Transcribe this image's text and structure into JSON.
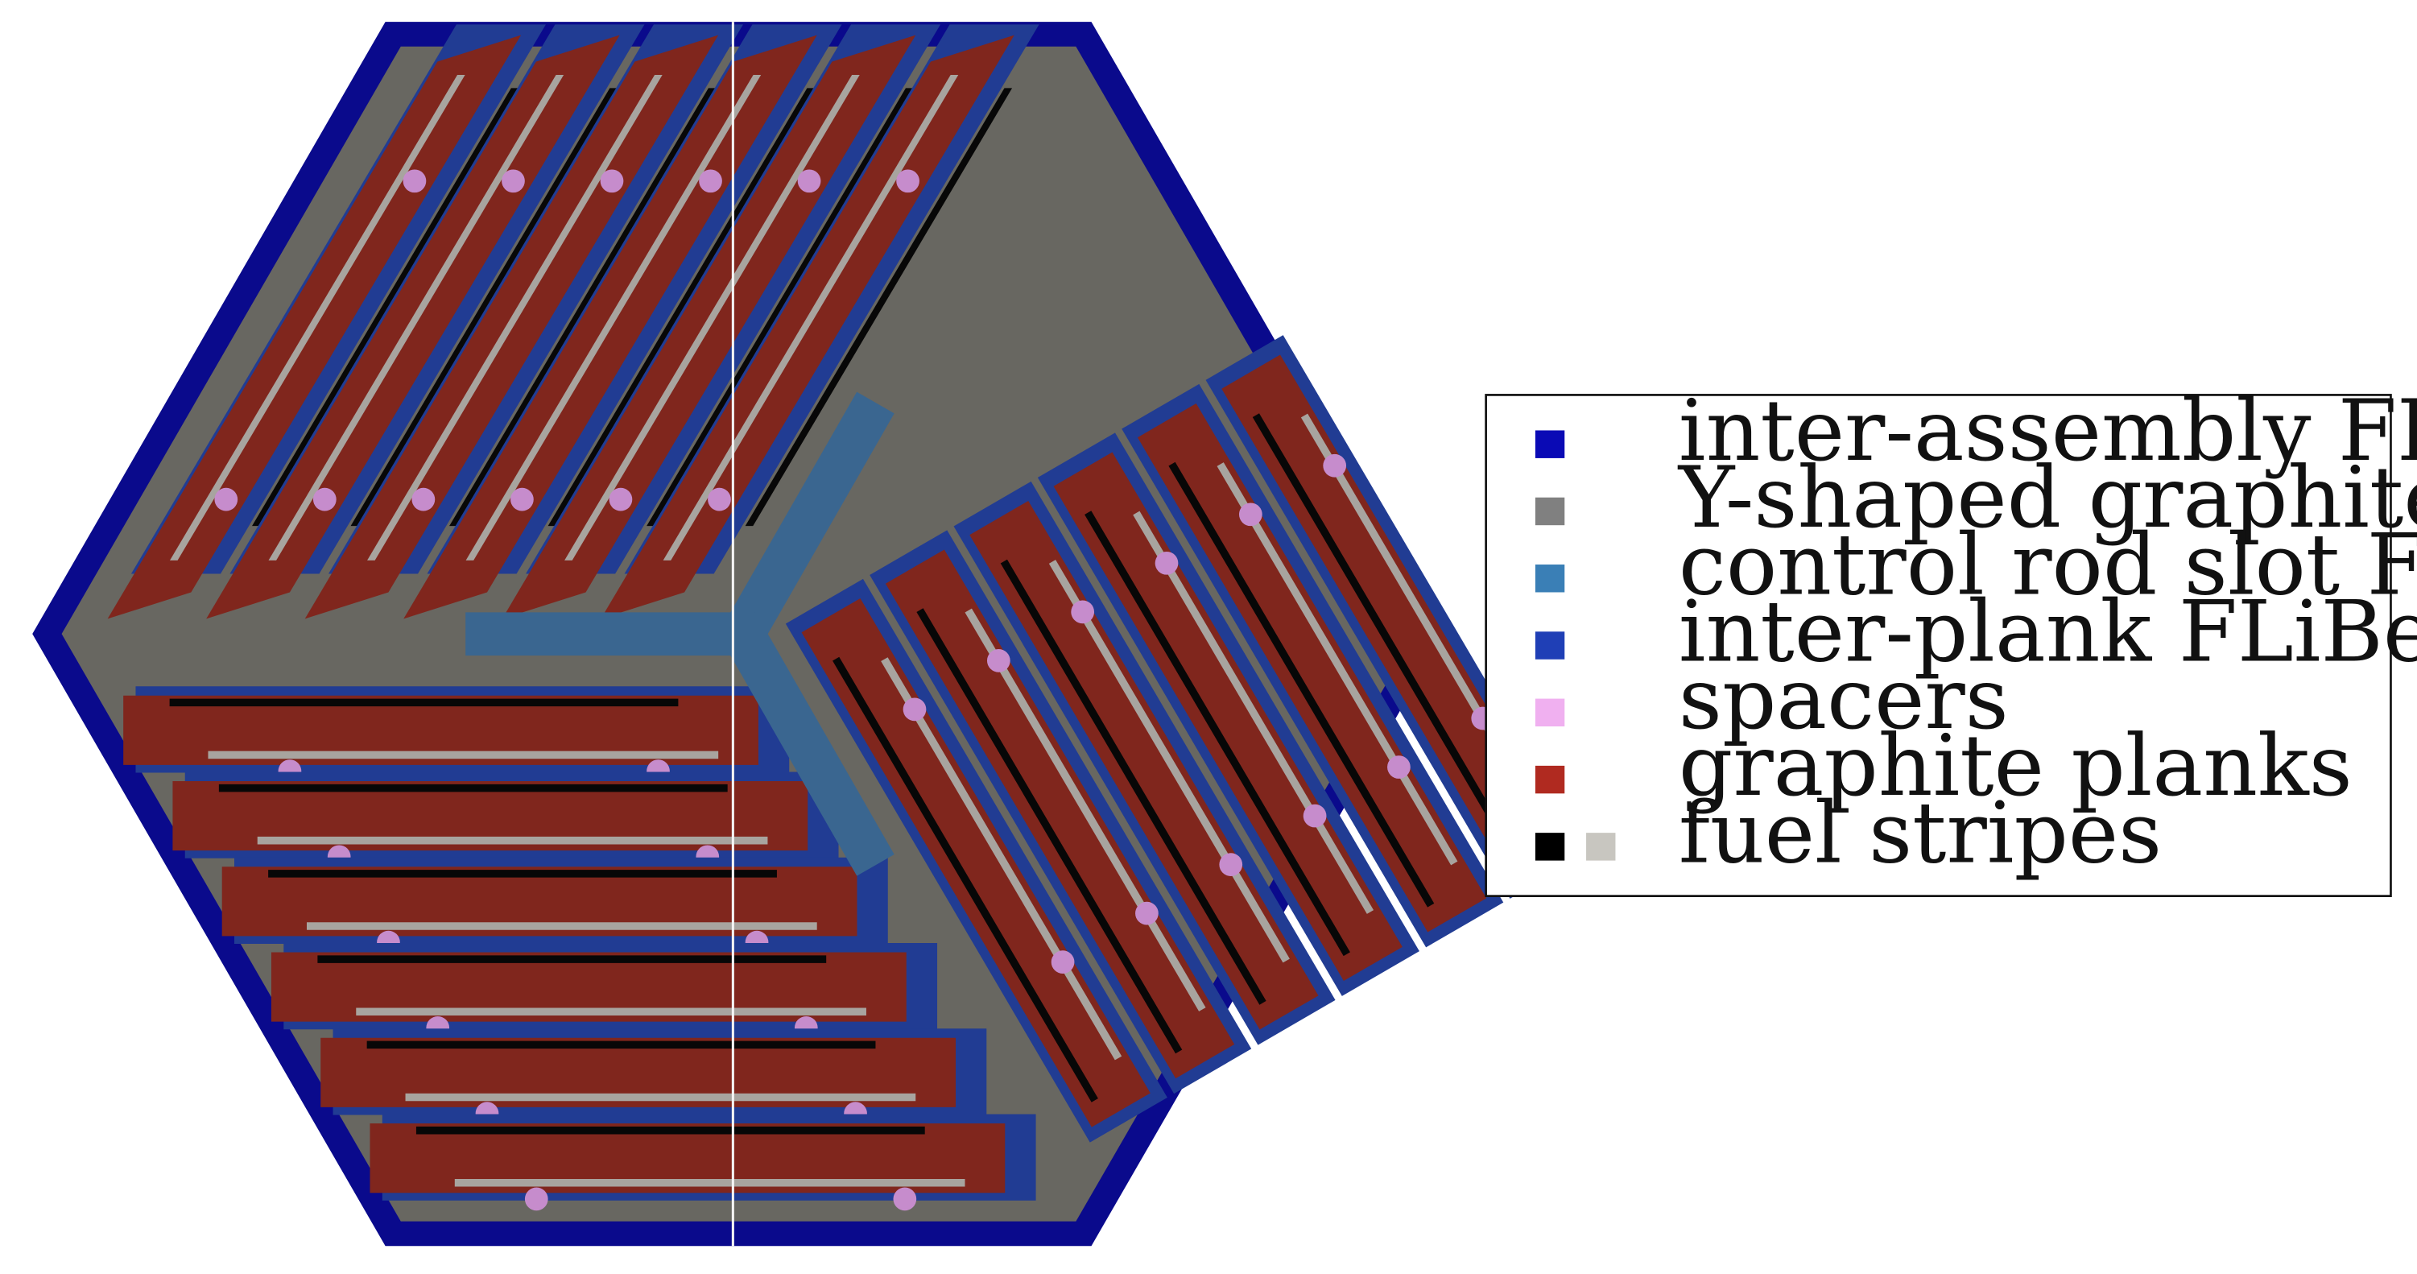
{
  "colors": {
    "inter_assembly_flibe": "#0a0a8c",
    "graphite_structure": "#686761",
    "control_rod_slot_flibe": "#3a6690",
    "inter_plank_flibe": "#213c93",
    "spacers": "#c68ccc",
    "graphite_planks": "#80261d",
    "fuel_stripe_dark": "#070707",
    "fuel_stripe_light": "#a8a49f",
    "divider_line": "#f4f4f4"
  },
  "legend": {
    "items": [
      {
        "label": "inter-assembly FLiBe",
        "swatches": [
          "#0a0ab5"
        ],
        "name": "inter-assembly-flibe"
      },
      {
        "label": "Y-shaped graphite structure",
        "swatches": [
          "#808080"
        ],
        "name": "y-shaped-graphite-structure"
      },
      {
        "label": "control rod slot FLiBe",
        "swatches": [
          "#3a7fb6"
        ],
        "name": "control-rod-slot-flibe"
      },
      {
        "label": "inter-plank FLiBe",
        "swatches": [
          "#1f3fb6"
        ],
        "name": "inter-plank-flibe"
      },
      {
        "label": "spacers",
        "swatches": [
          "#f0b0f0"
        ],
        "name": "spacers"
      },
      {
        "label": "graphite planks",
        "swatches": [
          "#b02a20"
        ],
        "name": "graphite-planks"
      },
      {
        "label": "fuel stripes",
        "swatches": [
          "#000000",
          "#c8c6c0"
        ],
        "name": "fuel-stripes"
      }
    ]
  }
}
